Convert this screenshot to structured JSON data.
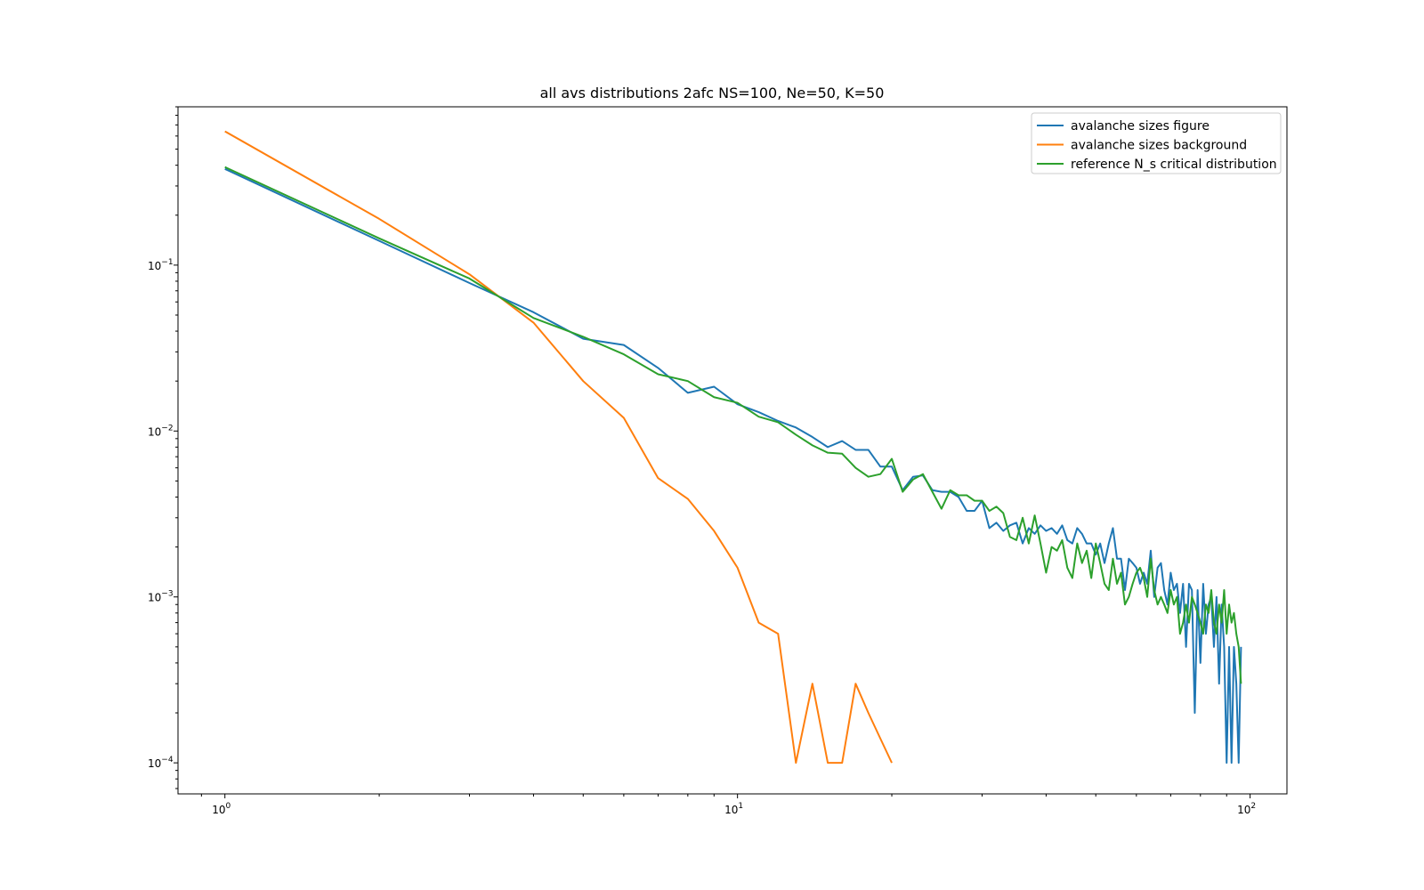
{
  "chart_data": {
    "type": "line",
    "title": "all avs distributions 2afc NS=100, Ne=50, K=50",
    "xlabel": "",
    "ylabel": "",
    "xscale": "log",
    "yscale": "log",
    "xlim": [
      0.81,
      118
    ],
    "ylim": [
      6.5e-05,
      0.9
    ],
    "grid": false,
    "legend_position": "upper right",
    "x_ticks": [
      {
        "base": "10",
        "exp": "0",
        "value": 1
      },
      {
        "base": "10",
        "exp": "1",
        "value": 10
      },
      {
        "base": "10",
        "exp": "2",
        "value": 100
      }
    ],
    "y_ticks": [
      {
        "base": "10",
        "exp": "−4",
        "value": 0.0001
      },
      {
        "base": "10",
        "exp": "−3",
        "value": 0.001
      },
      {
        "base": "10",
        "exp": "−2",
        "value": 0.01
      },
      {
        "base": "10",
        "exp": "−1",
        "value": 0.1
      }
    ],
    "series": [
      {
        "name": "avalanche sizes figure",
        "color": "#1f77b4",
        "x": [
          1,
          2,
          3,
          4,
          5,
          6,
          7,
          8,
          9,
          10,
          11,
          12,
          13,
          14,
          15,
          16,
          17,
          18,
          19,
          20,
          21,
          22,
          23,
          24,
          25,
          26,
          27,
          28,
          29,
          30,
          31,
          32,
          33,
          34,
          35,
          36,
          37,
          38,
          39,
          40,
          41,
          42,
          43,
          44,
          45,
          46,
          47,
          48,
          49,
          50,
          51,
          52,
          53,
          54,
          55,
          56,
          57,
          58,
          59,
          60,
          61,
          62,
          63,
          64,
          65,
          66,
          67,
          68,
          69,
          70,
          71,
          72,
          73,
          74,
          75,
          76,
          77,
          78,
          79,
          80,
          81,
          82,
          83,
          84,
          85,
          86,
          87,
          88,
          89,
          90,
          91,
          92,
          93,
          94,
          95,
          96
        ],
        "y": [
          0.38,
          0.14,
          0.078,
          0.052,
          0.036,
          0.033,
          0.024,
          0.017,
          0.0185,
          0.0145,
          0.013,
          0.0115,
          0.0105,
          0.0092,
          0.008,
          0.0087,
          0.0077,
          0.0077,
          0.0061,
          0.0061,
          0.0044,
          0.0053,
          0.0054,
          0.0044,
          0.0043,
          0.0043,
          0.004,
          0.0033,
          0.0033,
          0.0038,
          0.0026,
          0.0028,
          0.0025,
          0.0027,
          0.0028,
          0.0021,
          0.0026,
          0.0024,
          0.0027,
          0.0025,
          0.0026,
          0.0024,
          0.0027,
          0.0022,
          0.0021,
          0.0026,
          0.0024,
          0.0021,
          0.0021,
          0.0018,
          0.0021,
          0.0016,
          0.0021,
          0.0026,
          0.0017,
          0.0017,
          0.0011,
          0.0017,
          0.0016,
          0.0015,
          0.0012,
          0.0014,
          0.0012,
          0.0019,
          0.001,
          0.0015,
          0.0016,
          0.0011,
          0.0009,
          0.0014,
          0.0011,
          0.0012,
          0.0008,
          0.0012,
          0.0005,
          0.0012,
          0.0011,
          0.0002,
          0.0011,
          0.0004,
          0.0012,
          0.0006,
          0.0009,
          0.001,
          0.0005,
          0.001,
          0.0003,
          0.0009,
          0.0005,
          0.0001,
          0.0005,
          0.0001,
          0.0005,
          0.0003,
          0.0001,
          0.0005
        ]
      },
      {
        "name": "avalanche sizes background",
        "color": "#ff7f0e",
        "x": [
          1,
          2,
          3,
          4,
          5,
          6,
          7,
          8,
          9,
          10,
          11,
          12,
          13,
          14,
          15,
          16,
          17,
          18,
          19,
          20
        ],
        "y": [
          0.64,
          0.19,
          0.088,
          0.045,
          0.02,
          0.012,
          0.0052,
          0.0039,
          0.0025,
          0.0015,
          0.0007,
          0.0006,
          0.0001,
          0.0003,
          0.0001,
          0.0001,
          0.0003,
          0.0002,
          0.00014,
          0.0001
        ]
      },
      {
        "name": "reference N_s critical distribution",
        "color": "#2ca02c",
        "x": [
          1,
          2,
          3,
          4,
          5,
          6,
          7,
          8,
          9,
          10,
          11,
          12,
          13,
          14,
          15,
          16,
          17,
          18,
          19,
          20,
          21,
          22,
          23,
          24,
          25,
          26,
          27,
          28,
          29,
          30,
          31,
          32,
          33,
          34,
          35,
          36,
          37,
          38,
          39,
          40,
          41,
          42,
          43,
          44,
          45,
          46,
          47,
          48,
          49,
          50,
          51,
          52,
          53,
          54,
          55,
          56,
          57,
          58,
          59,
          60,
          61,
          62,
          63,
          64,
          65,
          66,
          67,
          68,
          69,
          70,
          71,
          72,
          73,
          74,
          75,
          76,
          77,
          78,
          79,
          80,
          81,
          82,
          83,
          84,
          85,
          86,
          87,
          88,
          89,
          90,
          91,
          92,
          93,
          94,
          95,
          96
        ],
        "y": [
          0.39,
          0.145,
          0.083,
          0.048,
          0.037,
          0.029,
          0.022,
          0.02,
          0.016,
          0.0148,
          0.0122,
          0.0113,
          0.0095,
          0.0082,
          0.0074,
          0.0073,
          0.006,
          0.0053,
          0.0055,
          0.0068,
          0.0043,
          0.0051,
          0.0055,
          0.0043,
          0.0034,
          0.0044,
          0.0041,
          0.0041,
          0.0038,
          0.0038,
          0.0033,
          0.0035,
          0.0032,
          0.0023,
          0.0022,
          0.003,
          0.0021,
          0.0031,
          0.0021,
          0.0014,
          0.002,
          0.0019,
          0.0022,
          0.0015,
          0.0013,
          0.0021,
          0.0016,
          0.0019,
          0.0013,
          0.0021,
          0.0016,
          0.0012,
          0.0011,
          0.0017,
          0.0012,
          0.0014,
          0.0009,
          0.001,
          0.0012,
          0.0014,
          0.0015,
          0.0013,
          0.001,
          0.0017,
          0.0011,
          0.0009,
          0.001,
          0.0009,
          0.0008,
          0.0011,
          0.0009,
          0.001,
          0.0006,
          0.0007,
          0.0009,
          0.0007,
          0.001,
          0.0009,
          0.0008,
          0.0007,
          0.0006,
          0.0009,
          0.0008,
          0.0011,
          0.0007,
          0.0006,
          0.0009,
          0.0007,
          0.0011,
          0.0006,
          0.0009,
          0.0007,
          0.0008,
          0.0006,
          0.0005,
          0.0003
        ]
      }
    ]
  }
}
